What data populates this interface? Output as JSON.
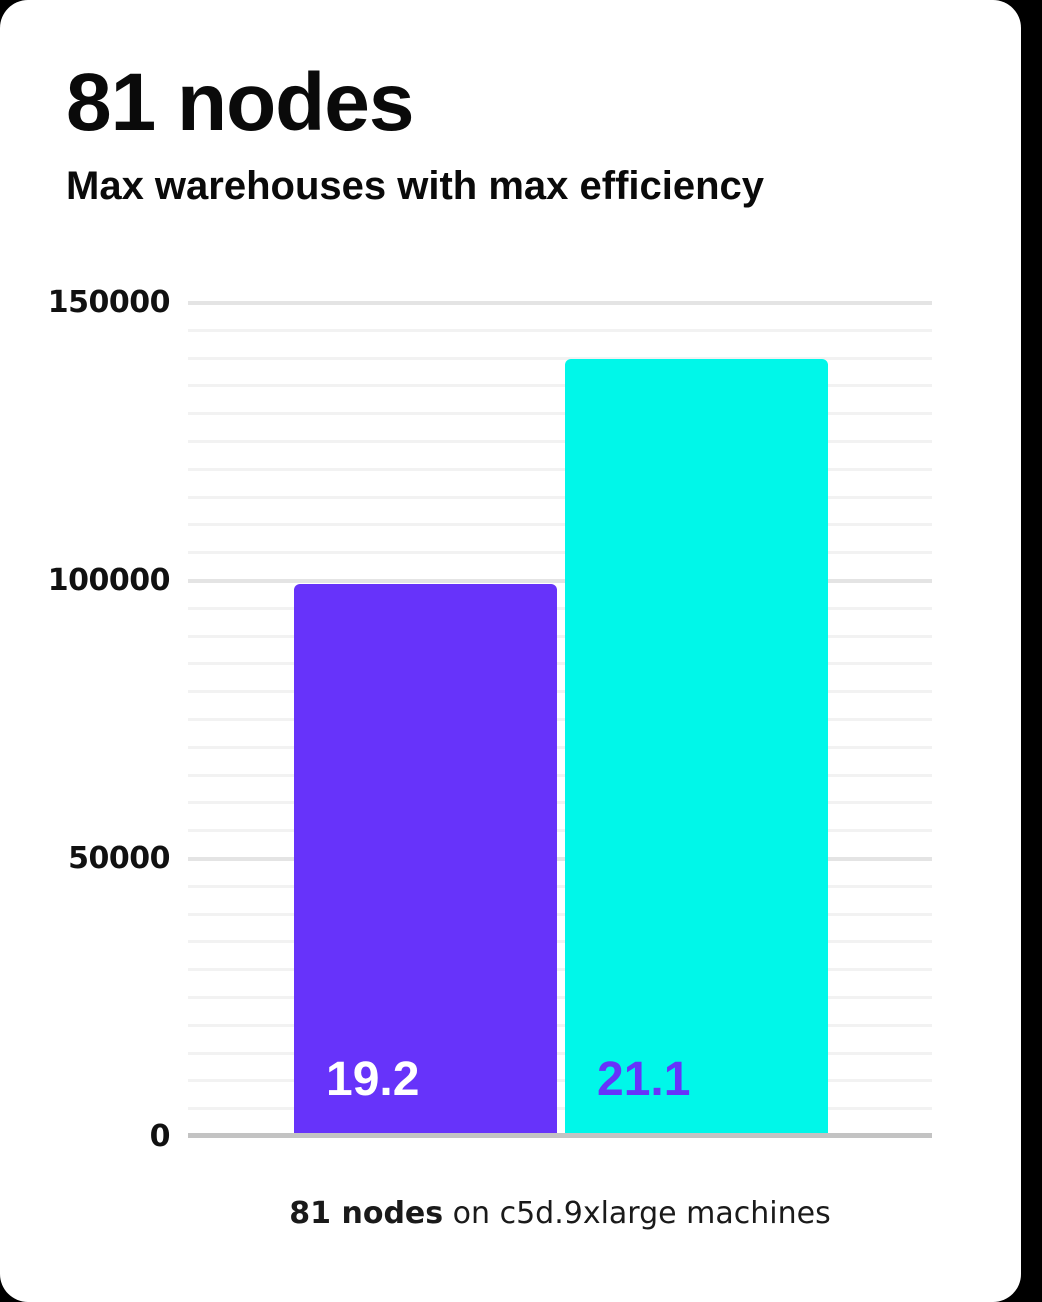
{
  "chart_data": {
    "type": "bar",
    "title": "81 nodes",
    "subtitle": "Max warehouses with max efficiency",
    "bars": [
      {
        "data_label": "19.2",
        "value": 99500,
        "color": "#6733FA",
        "data_label_color": "#FFFFFF"
      },
      {
        "data_label": "21.1",
        "value": 140000,
        "color": "#00F7E9",
        "data_label_color": "#6733FA"
      }
    ],
    "ylim": [
      0,
      150000
    ],
    "yticks": [
      "0",
      "50000",
      "100000",
      "150000"
    ],
    "ytick_values": [
      0,
      50000,
      100000,
      150000
    ],
    "minor_gridline_step": 5000,
    "grid": true,
    "legend": false,
    "xlabel": "",
    "ylabel": "",
    "caption_bold": "81 nodes",
    "caption_rest": " on c5d.9xlarge machines",
    "axis_line_color": "#C3C3C3",
    "gridline_minor_color": "#F2F2F2",
    "gridline_major_color": "#E4E4E4",
    "background_color": "#FFFFFF"
  }
}
